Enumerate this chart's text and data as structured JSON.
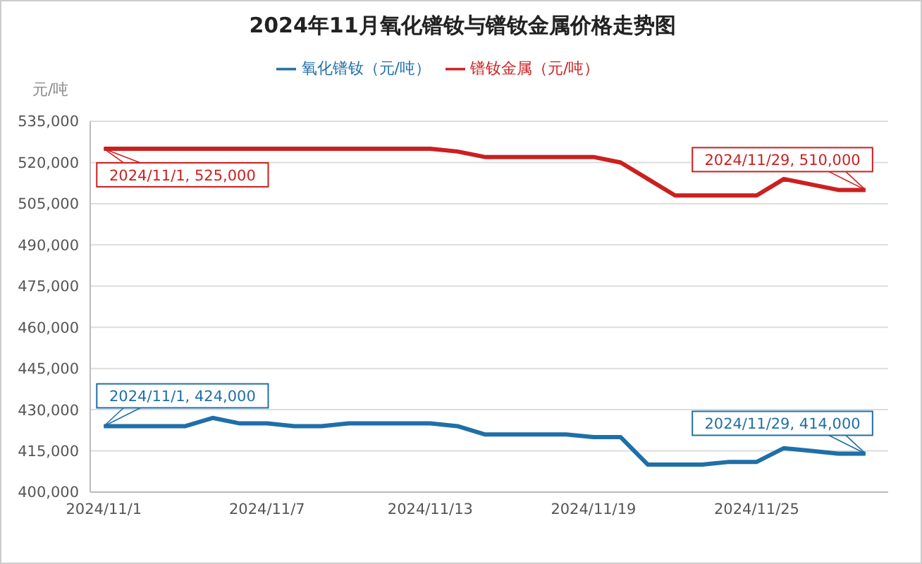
{
  "chart_data": {
    "type": "line",
    "title": "2024年11月氧化镨钕与镨钕金属价格走势图",
    "ylabel": "元/吨",
    "x": [
      "2024-11-01",
      "2024-11-02",
      "2024-11-03",
      "2024-11-04",
      "2024-11-05",
      "2024-11-06",
      "2024-11-07",
      "2024-11-08",
      "2024-11-09",
      "2024-11-10",
      "2024-11-11",
      "2024-11-12",
      "2024-11-13",
      "2024-11-14",
      "2024-11-15",
      "2024-11-16",
      "2024-11-17",
      "2024-11-18",
      "2024-11-19",
      "2024-11-20",
      "2024-11-21",
      "2024-11-22",
      "2024-11-23",
      "2024-11-24",
      "2024-11-25",
      "2024-11-26",
      "2024-11-27",
      "2024-11-28",
      "2024-11-29"
    ],
    "series": [
      {
        "name": "氧化镨钕（元/吨）",
        "color": "#1f6fa8",
        "values": [
          424000,
          424000,
          424000,
          424000,
          427000,
          425000,
          425000,
          424000,
          424000,
          425000,
          425000,
          425000,
          425000,
          424000,
          421000,
          421000,
          421000,
          421000,
          420000,
          420000,
          410000,
          410000,
          410000,
          411000,
          411000,
          416000,
          415000,
          414000,
          414000
        ]
      },
      {
        "name": "镨钕金属（元/吨）",
        "color": "#cc1f1f",
        "values": [
          525000,
          525000,
          525000,
          525000,
          525000,
          525000,
          525000,
          525000,
          525000,
          525000,
          525000,
          525000,
          525000,
          524000,
          522000,
          522000,
          522000,
          522000,
          522000,
          520000,
          514000,
          508000,
          508000,
          508000,
          508000,
          514000,
          512000,
          510000,
          510000
        ]
      }
    ],
    "xlim": [
      "2024-10-31T12:00",
      "2024-11-29T20:00"
    ],
    "xticks": [
      {
        "value": "2024-11-01",
        "label": "2024/11/1"
      },
      {
        "value": "2024-11-07",
        "label": "2024/11/7"
      },
      {
        "value": "2024-11-13",
        "label": "2024/11/13"
      },
      {
        "value": "2024-11-19",
        "label": "2024/11/19"
      },
      {
        "value": "2024-11-25",
        "label": "2024/11/25"
      }
    ],
    "ylim": [
      400000,
      535000
    ],
    "yticks": [
      {
        "value": 400000,
        "label": "400,000"
      },
      {
        "value": 415000,
        "label": "415,000"
      },
      {
        "value": 430000,
        "label": "430,000"
      },
      {
        "value": 445000,
        "label": "445,000"
      },
      {
        "value": 460000,
        "label": "460,000"
      },
      {
        "value": 475000,
        "label": "475,000"
      },
      {
        "value": 490000,
        "label": "490,000"
      },
      {
        "value": 505000,
        "label": "505,000"
      },
      {
        "value": 520000,
        "label": "520,000"
      },
      {
        "value": 535000,
        "label": "535,000"
      }
    ],
    "grid": "y",
    "legend": "top",
    "marker": "none",
    "line_style": "solid",
    "annotations": [
      {
        "text": "2024/11/1, 525,000",
        "x": "2024-11-01",
        "y": 525000
      },
      {
        "text": "2024/11/29, 510,000",
        "x": "2024-11-29",
        "y": 510000
      },
      {
        "text": "2024/11/1, 424,000",
        "x": "2024-11-01",
        "y": 424000
      },
      {
        "text": "2024/11/29, 414,000",
        "x": "2024-11-29",
        "y": 414000
      }
    ]
  }
}
